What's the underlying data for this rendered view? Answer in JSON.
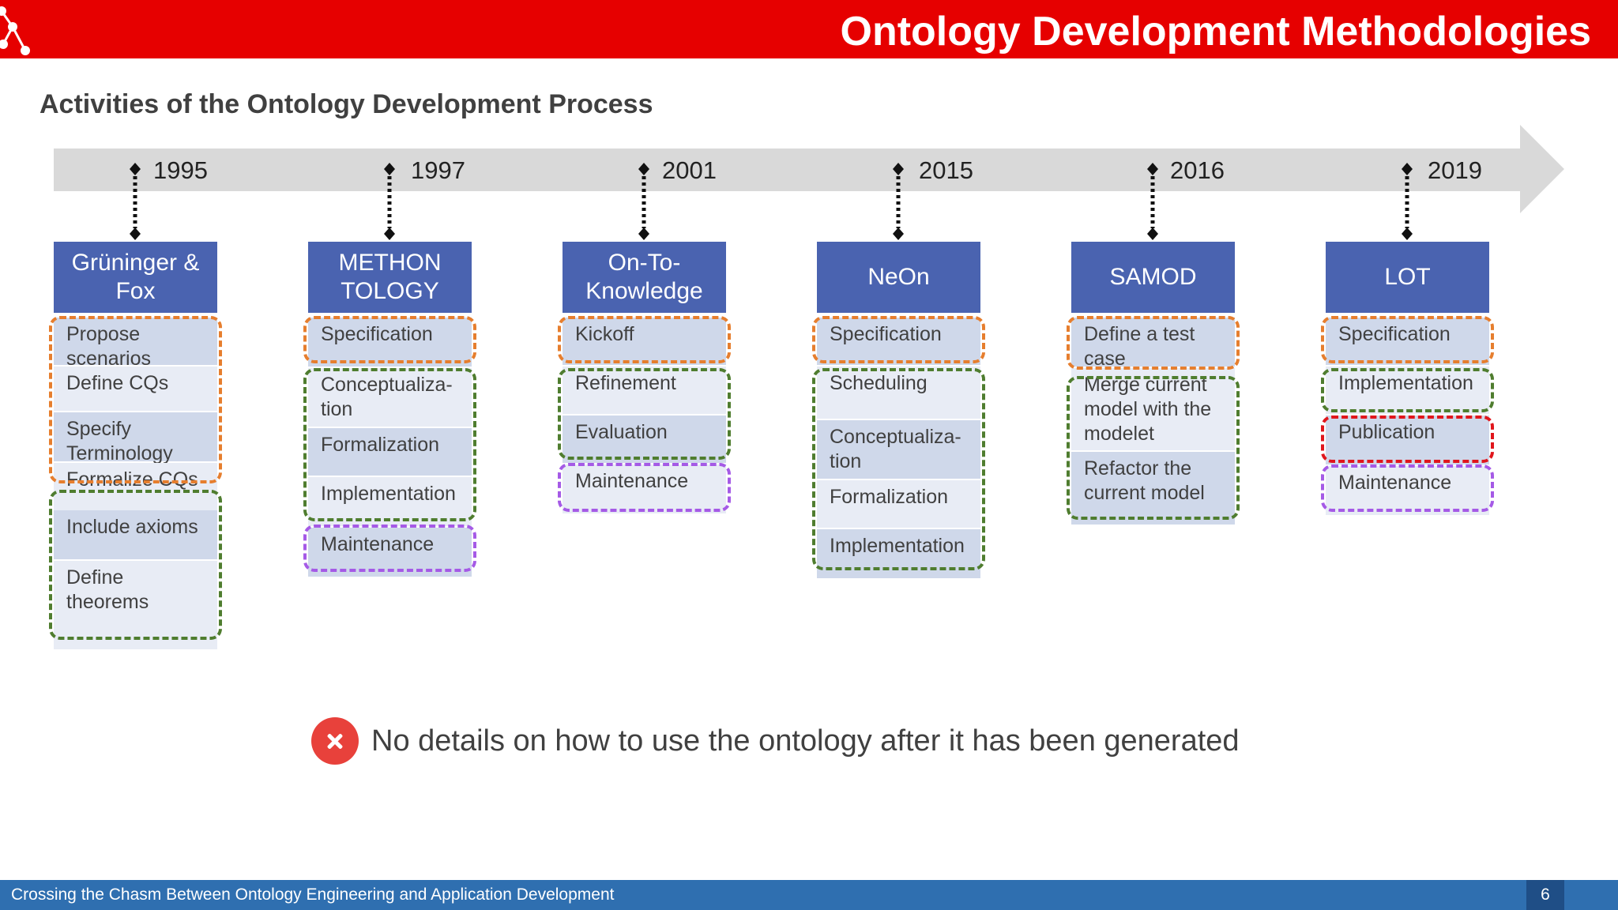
{
  "header": {
    "title": "Ontology Development Methodologies"
  },
  "subtitle": "Activities of the Ontology Development Process",
  "colors": {
    "header": "#e60000",
    "method_header": "#4a63b0",
    "specification_group": "#e67e2e",
    "development_group": "#4f7d2f",
    "maintenance_group": "#a55ae6",
    "publication_group": "#e0161c",
    "footer": "#2f6fb0"
  },
  "methodologies": [
    {
      "year": "1995",
      "name": "Grüninger &\nFox",
      "activities": [
        "Propose\nscenarios",
        "Define CQs",
        "Specify\nTerminology",
        "Formalize CQs",
        "Include axioms",
        "Define\ntheorems"
      ]
    },
    {
      "year": "1997",
      "name": "METHON\nTOLOGY",
      "activities": [
        "Specification",
        "Conceptualiza-\ntion",
        "Formalization",
        "Implementation",
        "Maintenance"
      ]
    },
    {
      "year": "2001",
      "name": "On-To-\nKnowledge",
      "activities": [
        "Kickoff",
        "Refinement",
        "Evaluation",
        "Maintenance"
      ]
    },
    {
      "year": "2015",
      "name": "NeOn",
      "activities": [
        "Specification",
        "Scheduling",
        "Conceptualiza-\ntion",
        "Formalization",
        "Implementation"
      ]
    },
    {
      "year": "2016",
      "name": "SAMOD",
      "activities": [
        "Define a test\ncase",
        "Merge current\nmodel with the\nmodelet",
        "Refactor the\ncurrent model"
      ]
    },
    {
      "year": "2019",
      "name": "LOT",
      "activities": [
        "Specification",
        "Implementation",
        "Publication",
        "Maintenance"
      ]
    }
  ],
  "note": {
    "icon": "x-circle-icon",
    "text": "No details on how to use the ontology after it has been generated"
  },
  "footer": {
    "text": "Crossing the Chasm Between Ontology Engineering and Application Development",
    "page": "6"
  }
}
